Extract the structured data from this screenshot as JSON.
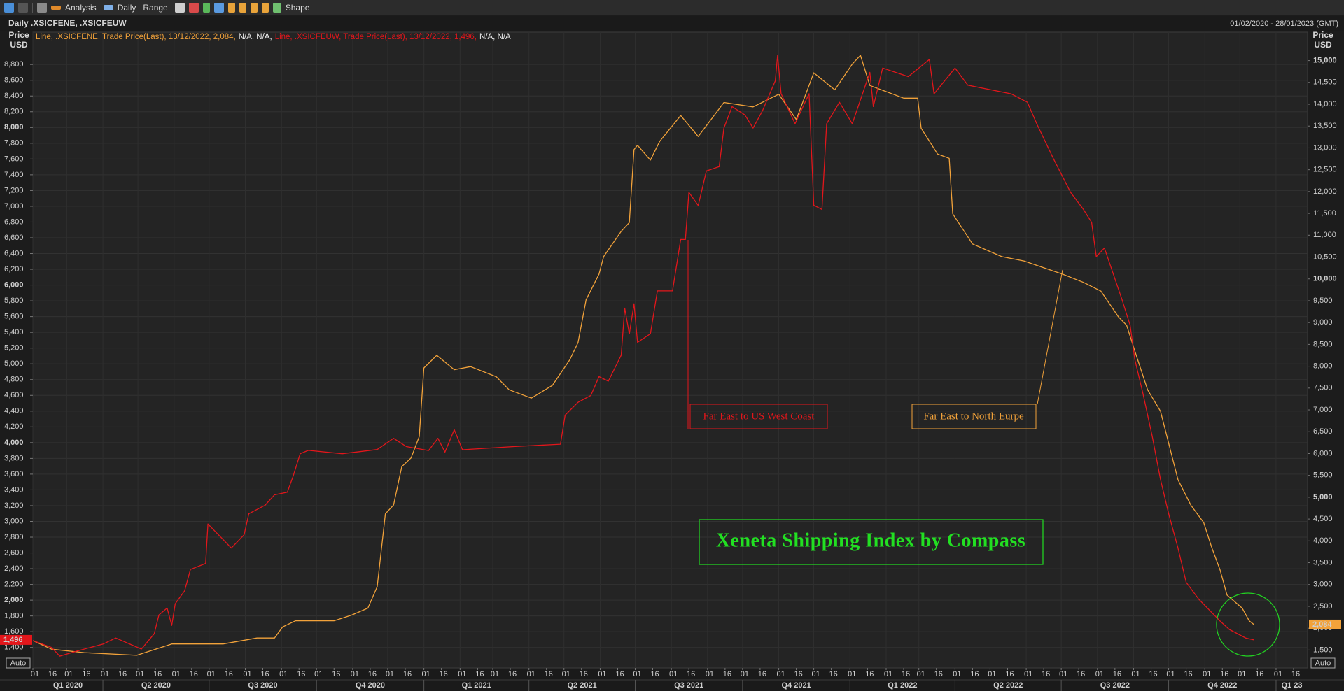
{
  "toolbar": {
    "labels": [
      "Analysis",
      "Daily",
      "Range",
      "Shape"
    ]
  },
  "chart_data": {
    "type": "line",
    "title": "Daily .XSICFENE, .XSICFEUW",
    "date_range": "01/02/2020 - 28/01/2023 (GMT)",
    "ylabel_lines": [
      "Price",
      "USD"
    ],
    "y2label_lines": [
      "Price",
      "USD"
    ],
    "axis_buttons": {
      "left": "Auto",
      "right": "Auto"
    },
    "grid": true,
    "xlim": [
      "2020-02-01",
      "2023-01-28"
    ],
    "xticks": [
      {
        "value": "2020-02-01",
        "label": "01"
      },
      {
        "value": "2020-02-16",
        "label": "16"
      },
      {
        "value": "2020-03-01",
        "label": "01"
      },
      {
        "value": "2020-03-16",
        "label": "16"
      },
      {
        "value": "2020-04-01",
        "label": "01"
      },
      {
        "value": "2020-04-16",
        "label": "16"
      },
      {
        "value": "2020-05-01",
        "label": "01"
      },
      {
        "value": "2020-05-16",
        "label": "16"
      },
      {
        "value": "2020-06-01",
        "label": "01"
      },
      {
        "value": "2020-06-16",
        "label": "16"
      },
      {
        "value": "2020-07-01",
        "label": "01"
      },
      {
        "value": "2020-07-16",
        "label": "16"
      },
      {
        "value": "2020-08-01",
        "label": "01"
      },
      {
        "value": "2020-08-16",
        "label": "16"
      },
      {
        "value": "2020-09-01",
        "label": "01"
      },
      {
        "value": "2020-09-16",
        "label": "16"
      },
      {
        "value": "2020-10-01",
        "label": "01"
      },
      {
        "value": "2020-10-16",
        "label": "16"
      },
      {
        "value": "2020-11-01",
        "label": "01"
      },
      {
        "value": "2020-11-16",
        "label": "16"
      },
      {
        "value": "2020-12-01",
        "label": "01"
      },
      {
        "value": "2020-12-16",
        "label": "16"
      },
      {
        "value": "2021-01-01",
        "label": "01"
      },
      {
        "value": "2021-01-16",
        "label": "16"
      },
      {
        "value": "2021-02-01",
        "label": "01"
      },
      {
        "value": "2021-02-16",
        "label": "16"
      },
      {
        "value": "2021-03-01",
        "label": "01"
      },
      {
        "value": "2021-03-16",
        "label": "16"
      },
      {
        "value": "2021-04-01",
        "label": "01"
      },
      {
        "value": "2021-04-16",
        "label": "16"
      },
      {
        "value": "2021-05-01",
        "label": "01"
      },
      {
        "value": "2021-05-16",
        "label": "16"
      },
      {
        "value": "2021-06-01",
        "label": "01"
      },
      {
        "value": "2021-06-16",
        "label": "16"
      },
      {
        "value": "2021-07-01",
        "label": "01"
      },
      {
        "value": "2021-07-16",
        "label": "16"
      },
      {
        "value": "2021-08-01",
        "label": "01"
      },
      {
        "value": "2021-08-16",
        "label": "16"
      },
      {
        "value": "2021-09-01",
        "label": "01"
      },
      {
        "value": "2021-09-16",
        "label": "16"
      },
      {
        "value": "2021-10-01",
        "label": "01"
      },
      {
        "value": "2021-10-16",
        "label": "16"
      },
      {
        "value": "2021-11-01",
        "label": "01"
      },
      {
        "value": "2021-11-16",
        "label": "16"
      },
      {
        "value": "2021-12-01",
        "label": "01"
      },
      {
        "value": "2021-12-16",
        "label": "16"
      },
      {
        "value": "2022-01-01",
        "label": "01"
      },
      {
        "value": "2022-01-16",
        "label": "16"
      },
      {
        "value": "2022-02-01",
        "label": "01"
      },
      {
        "value": "2022-02-16",
        "label": "16"
      },
      {
        "value": "2022-03-01",
        "label": "01"
      },
      {
        "value": "2022-03-16",
        "label": "16"
      },
      {
        "value": "2022-04-01",
        "label": "01"
      },
      {
        "value": "2022-04-16",
        "label": "16"
      },
      {
        "value": "2022-05-01",
        "label": "01"
      },
      {
        "value": "2022-05-16",
        "label": "16"
      },
      {
        "value": "2022-06-01",
        "label": "01"
      },
      {
        "value": "2022-06-16",
        "label": "16"
      },
      {
        "value": "2022-07-01",
        "label": "01"
      },
      {
        "value": "2022-07-16",
        "label": "16"
      },
      {
        "value": "2022-08-01",
        "label": "01"
      },
      {
        "value": "2022-08-16",
        "label": "16"
      },
      {
        "value": "2022-09-01",
        "label": "01"
      },
      {
        "value": "2022-09-16",
        "label": "16"
      },
      {
        "value": "2022-10-01",
        "label": "01"
      },
      {
        "value": "2022-10-16",
        "label": "16"
      },
      {
        "value": "2022-11-01",
        "label": "01"
      },
      {
        "value": "2022-11-16",
        "label": "16"
      },
      {
        "value": "2022-12-01",
        "label": "01"
      },
      {
        "value": "2022-12-16",
        "label": "16"
      },
      {
        "value": "2023-01-01",
        "label": "01"
      },
      {
        "value": "2023-01-16",
        "label": "16"
      }
    ],
    "quarters": [
      {
        "label": "Q1 2020",
        "from": "2020-01-01",
        "to": "2020-04-01"
      },
      {
        "label": "Q2 2020",
        "from": "2020-04-01",
        "to": "2020-07-01"
      },
      {
        "label": "Q3 2020",
        "from": "2020-07-01",
        "to": "2020-10-01"
      },
      {
        "label": "Q4 2020",
        "from": "2020-10-01",
        "to": "2021-01-01"
      },
      {
        "label": "Q1 2021",
        "from": "2021-01-01",
        "to": "2021-04-01"
      },
      {
        "label": "Q2 2021",
        "from": "2021-04-01",
        "to": "2021-07-01"
      },
      {
        "label": "Q3 2021",
        "from": "2021-07-01",
        "to": "2021-10-01"
      },
      {
        "label": "Q4 2021",
        "from": "2021-10-01",
        "to": "2022-01-01"
      },
      {
        "label": "Q1 2022",
        "from": "2022-01-01",
        "to": "2022-04-01"
      },
      {
        "label": "Q2 2022",
        "from": "2022-04-01",
        "to": "2022-07-01"
      },
      {
        "label": "Q3 2022",
        "from": "2022-07-01",
        "to": "2022-10-01"
      },
      {
        "label": "Q4 2022",
        "from": "2022-10-01",
        "to": "2023-01-01"
      },
      {
        "label": "Q1 23",
        "from": "2023-01-01",
        "to": "2023-04-01"
      }
    ],
    "ylim": [
      1140,
      9210
    ],
    "yticks": [
      {
        "value": 1400,
        "label": "1,400"
      },
      {
        "value": 1600,
        "label": "1,600"
      },
      {
        "value": 1800,
        "label": "1,800"
      },
      {
        "value": 2000,
        "label": "2,000"
      },
      {
        "value": 2200,
        "label": "2,200"
      },
      {
        "value": 2400,
        "label": "2,400"
      },
      {
        "value": 2600,
        "label": "2,600"
      },
      {
        "value": 2800,
        "label": "2,800"
      },
      {
        "value": 3000,
        "label": "3,000"
      },
      {
        "value": 3200,
        "label": "3,200"
      },
      {
        "value": 3400,
        "label": "3,400"
      },
      {
        "value": 3600,
        "label": "3,600"
      },
      {
        "value": 3800,
        "label": "3,800"
      },
      {
        "value": 4000,
        "label": "4,000"
      },
      {
        "value": 4200,
        "label": "4,200"
      },
      {
        "value": 4400,
        "label": "4,400"
      },
      {
        "value": 4600,
        "label": "4,600"
      },
      {
        "value": 4800,
        "label": "4,800"
      },
      {
        "value": 5000,
        "label": "5,000"
      },
      {
        "value": 5200,
        "label": "5,200"
      },
      {
        "value": 5400,
        "label": "5,400"
      },
      {
        "value": 5600,
        "label": "5,600"
      },
      {
        "value": 5800,
        "label": "5,800"
      },
      {
        "value": 6000,
        "label": "6,000"
      },
      {
        "value": 6200,
        "label": "6,200"
      },
      {
        "value": 6400,
        "label": "6,400"
      },
      {
        "value": 6600,
        "label": "6,600"
      },
      {
        "value": 6800,
        "label": "6,800"
      },
      {
        "value": 7000,
        "label": "7,000"
      },
      {
        "value": 7200,
        "label": "7,200"
      },
      {
        "value": 7400,
        "label": "7,400"
      },
      {
        "value": 7600,
        "label": "7,600"
      },
      {
        "value": 7800,
        "label": "7,800"
      },
      {
        "value": 8000,
        "label": "8,000"
      },
      {
        "value": 8200,
        "label": "8,200"
      },
      {
        "value": 8400,
        "label": "8,400"
      },
      {
        "value": 8600,
        "label": "8,600"
      },
      {
        "value": 8800,
        "label": "8,800"
      }
    ],
    "y2lim": [
      1090,
      15650
    ],
    "y2ticks": [
      {
        "value": 1500,
        "label": "1,500"
      },
      {
        "value": 2000,
        "label": "2,000"
      },
      {
        "value": 2500,
        "label": "2,500"
      },
      {
        "value": 3000,
        "label": "3,000"
      },
      {
        "value": 3500,
        "label": "3,500"
      },
      {
        "value": 4000,
        "label": "4,000"
      },
      {
        "value": 4500,
        "label": "4,500"
      },
      {
        "value": 5000,
        "label": "5,000"
      },
      {
        "value": 5500,
        "label": "5,500"
      },
      {
        "value": 6000,
        "label": "6,000"
      },
      {
        "value": 6500,
        "label": "6,500"
      },
      {
        "value": 7000,
        "label": "7,000"
      },
      {
        "value": 7500,
        "label": "7,500"
      },
      {
        "value": 8000,
        "label": "8,000"
      },
      {
        "value": 8500,
        "label": "8,500"
      },
      {
        "value": 9000,
        "label": "9,000"
      },
      {
        "value": 9500,
        "label": "9,500"
      },
      {
        "value": 10000,
        "label": "10,000"
      },
      {
        "value": 10500,
        "label": "10,500"
      },
      {
        "value": 11000,
        "label": "11,000"
      },
      {
        "value": 11500,
        "label": "11,500"
      },
      {
        "value": 12000,
        "label": "12,000"
      },
      {
        "value": 12500,
        "label": "12,500"
      },
      {
        "value": 13000,
        "label": "13,000"
      },
      {
        "value": 13500,
        "label": "13,500"
      },
      {
        "value": 14000,
        "label": "14,000"
      },
      {
        "value": 14500,
        "label": "14,500"
      },
      {
        "value": 15000,
        "label": "15,000"
      }
    ],
    "series": [
      {
        "legend": [
          "Line, .XSICFENE, Trade Price(Last), 13/12/2022, 2,084,",
          "N/A, N/A,"
        ],
        "color": "#f2a23a",
        "axis": "y2",
        "last_label": "2,084",
        "x": [
          "2020-02-01",
          "2020-02-17",
          "2020-03-16",
          "2020-04-30",
          "2020-05-30",
          "2020-07-13",
          "2020-08-11",
          "2020-08-26",
          "2020-09-02",
          "2020-09-13",
          "2020-10-16",
          "2020-10-31",
          "2020-11-14",
          "2020-11-22",
          "2020-11-29",
          "2020-12-06",
          "2020-12-13",
          "2020-12-21",
          "2020-12-28",
          "2021-01-01",
          "2021-01-12",
          "2021-01-27",
          "2021-02-10",
          "2021-03-04",
          "2021-03-15",
          "2021-04-03",
          "2021-04-21",
          "2021-05-06",
          "2021-05-13",
          "2021-05-20",
          "2021-05-31",
          "2021-06-04",
          "2021-06-19",
          "2021-06-26",
          "2021-06-30",
          "2021-07-03",
          "2021-07-14",
          "2021-07-22",
          "2021-08-09",
          "2021-08-24",
          "2021-09-15",
          "2021-10-10",
          "2021-11-01",
          "2021-11-16",
          "2021-12-01",
          "2021-12-19",
          "2022-01-03",
          "2022-01-10",
          "2022-01-18",
          "2022-02-16",
          "2022-02-28",
          "2022-03-03",
          "2022-03-17",
          "2022-03-27",
          "2022-03-30",
          "2022-04-16",
          "2022-05-11",
          "2022-05-30",
          "2022-06-10",
          "2022-07-02",
          "2022-07-20",
          "2022-08-04",
          "2022-08-19",
          "2022-08-26",
          "2022-09-02",
          "2022-09-13",
          "2022-09-24",
          "2022-10-09",
          "2022-10-20",
          "2022-10-31",
          "2022-11-07",
          "2022-11-14",
          "2022-11-20",
          "2022-12-03",
          "2022-12-09",
          "2022-12-13"
        ],
        "values": [
          1716,
          1520,
          1440,
          1380,
          1640,
          1640,
          1775,
          1775,
          2030,
          2170,
          2170,
          2300,
          2460,
          2950,
          4620,
          4820,
          5700,
          5900,
          6390,
          7960,
          8250,
          7920,
          7990,
          7760,
          7460,
          7270,
          7560,
          8150,
          8540,
          9525,
          10110,
          10510,
          11090,
          11290,
          12960,
          13060,
          12720,
          13150,
          13740,
          13260,
          14040,
          13940,
          14230,
          13650,
          14720,
          14330,
          14920,
          15120,
          14430,
          14140,
          14140,
          13450,
          12860,
          12760,
          11490,
          10800,
          10510,
          10410,
          10310,
          10110,
          9920,
          9720,
          9130,
          8940,
          8350,
          7460,
          6970,
          5400,
          4820,
          4420,
          3840,
          3340,
          2760,
          2460,
          2170,
          2084
        ]
      },
      {
        "legend": [
          "Line, .XSICFEUW, Trade Price(Last), 13/12/2022, 1,496,",
          "N/A, N/A"
        ],
        "color": "#e3161b",
        "axis": "y",
        "last_label": "1,496",
        "x": [
          "2020-02-01",
          "2020-02-17",
          "2020-02-24",
          "2020-03-10",
          "2020-04-01",
          "2020-04-12",
          "2020-05-04",
          "2020-05-15",
          "2020-05-19",
          "2020-05-26",
          "2020-05-30",
          "2020-06-02",
          "2020-06-10",
          "2020-06-15",
          "2020-06-28",
          "2020-06-30",
          "2020-07-13",
          "2020-07-20",
          "2020-07-31",
          "2020-08-04",
          "2020-08-18",
          "2020-08-26",
          "2020-09-06",
          "2020-09-11",
          "2020-09-17",
          "2020-09-24",
          "2020-10-23",
          "2020-11-22",
          "2020-12-06",
          "2020-12-17",
          "2021-01-05",
          "2021-01-13",
          "2021-01-19",
          "2021-01-27",
          "2021-02-03",
          "2021-03-19",
          "2021-04-28",
          "2021-05-02",
          "2021-05-13",
          "2021-05-24",
          "2021-05-31",
          "2021-06-08",
          "2021-06-19",
          "2021-06-22",
          "2021-06-26",
          "2021-06-30",
          "2021-07-03",
          "2021-07-14",
          "2021-07-20",
          "2021-08-02",
          "2021-08-09",
          "2021-08-13",
          "2021-08-16",
          "2021-08-24",
          "2021-08-31",
          "2021-09-11",
          "2021-09-15",
          "2021-09-22",
          "2021-10-03",
          "2021-10-10",
          "2021-10-18",
          "2021-10-29",
          "2021-10-31",
          "2021-11-03",
          "2021-11-15",
          "2021-11-27",
          "2021-12-01",
          "2021-12-08",
          "2021-12-12",
          "2021-12-23",
          "2022-01-03",
          "2022-01-18",
          "2022-01-21",
          "2022-01-29",
          "2022-02-20",
          "2022-03-10",
          "2022-03-14",
          "2022-04-01",
          "2022-04-12",
          "2022-05-19",
          "2022-06-02",
          "2022-06-10",
          "2022-06-24",
          "2022-07-09",
          "2022-07-20",
          "2022-07-27",
          "2022-07-31",
          "2022-08-07",
          "2022-08-22",
          "2022-08-29",
          "2022-09-02",
          "2022-09-09",
          "2022-09-17",
          "2022-09-24",
          "2022-10-01",
          "2022-10-09",
          "2022-10-16",
          "2022-10-27",
          "2022-11-14",
          "2022-11-22",
          "2022-12-06",
          "2022-12-13"
        ],
        "values": [
          1487,
          1400,
          1290,
          1356,
          1443,
          1520,
          1380,
          1574,
          1813,
          1900,
          1680,
          1955,
          2118,
          2390,
          2466,
          2967,
          2770,
          2662,
          2830,
          3097,
          3206,
          3337,
          3370,
          3576,
          3859,
          3902,
          3859,
          3913,
          4055,
          3950,
          3900,
          4055,
          3880,
          4164,
          3910,
          3950,
          3980,
          4349,
          4512,
          4599,
          4838,
          4780,
          5110,
          5708,
          5380,
          5763,
          5273,
          5382,
          5926,
          5926,
          6579,
          6579,
          7177,
          7010,
          7449,
          7504,
          7993,
          8265,
          8160,
          7993,
          8210,
          8592,
          8918,
          8430,
          8048,
          8430,
          7014,
          6960,
          8048,
          8320,
          8048,
          8700,
          8265,
          8755,
          8646,
          8864,
          8428,
          8755,
          8537,
          8428,
          8320,
          8048,
          7613,
          7177,
          6960,
          6797,
          6361,
          6470,
          5817,
          5491,
          5056,
          4621,
          4077,
          3533,
          3097,
          2662,
          2227,
          2009,
          1737,
          1628,
          1520,
          1496
        ]
      }
    ],
    "annotations": [
      "Far East to US West Coast",
      "Far East to North Eurpe"
    ],
    "watermark": "Xeneta Shipping Index by Compass"
  }
}
